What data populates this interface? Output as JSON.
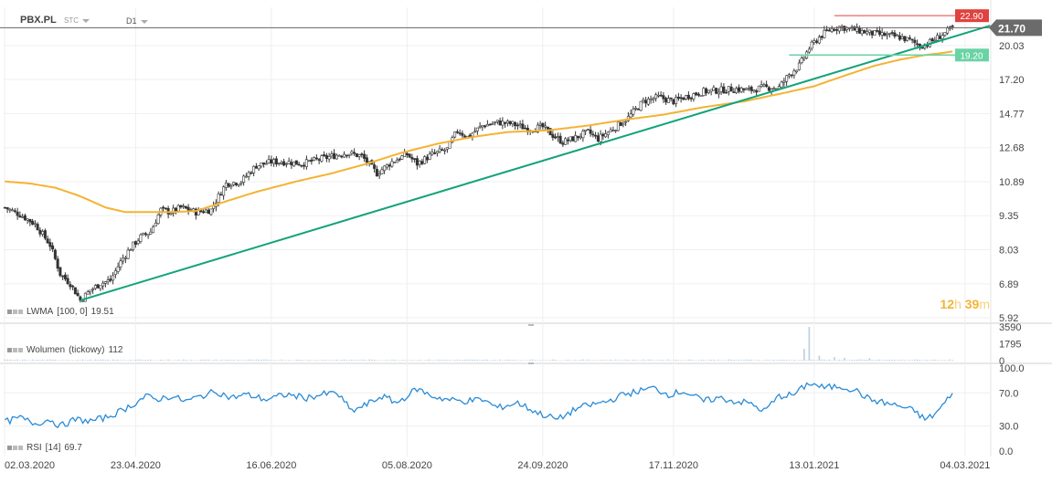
{
  "header": {
    "symbol": "PBX.PL",
    "symbol_sub": "STC",
    "timeframe": "D1"
  },
  "indicators": {
    "lwma_name": "LWMA",
    "lwma_params": "[100, 0]",
    "lwma_value": "19.51",
    "volume_name": "Wolumen",
    "volume_params": "(tickowy)",
    "volume_value": "112",
    "rsi_name": "RSI",
    "rsi_params": "[14]",
    "rsi_value": "69.7"
  },
  "timer": {
    "hours": "12",
    "h_unit": "h",
    "minutes": "39",
    "m_unit": "m"
  },
  "colors": {
    "candle": "#333333",
    "lwma": "#f4b333",
    "trendline": "#12a37a",
    "support": "#69d3a4",
    "resistance": "#e0423f",
    "current_price": "#666666",
    "rsi": "#2a8bd6",
    "volume": "#b9cde0"
  },
  "chart_data": [
    {
      "type": "candlestick",
      "title": "PBX.PL",
      "x_ticks": [
        "02.03.2020",
        "23.04.2020",
        "16.06.2020",
        "05.08.2020",
        "24.09.2020",
        "17.11.2020",
        "13.01.2021",
        "04.03.2021"
      ],
      "y_ticks": [
        "5.92",
        "6.89",
        "8.03",
        "9.35",
        "10.89",
        "12.68",
        "14.77",
        "17.20",
        "20.03"
      ],
      "ylim": [
        5.92,
        23.2
      ],
      "scale": "log",
      "grid": true,
      "close_path": [
        [
          0,
          9.7
        ],
        [
          6,
          9.4
        ],
        [
          12,
          9.0
        ],
        [
          18,
          8.2
        ],
        [
          22,
          7.2
        ],
        [
          26,
          6.9
        ],
        [
          30,
          6.4
        ],
        [
          34,
          6.7
        ],
        [
          38,
          6.9
        ],
        [
          42,
          7.0
        ],
        [
          46,
          7.6
        ],
        [
          50,
          8.1
        ],
        [
          54,
          8.5
        ],
        [
          58,
          8.7
        ],
        [
          62,
          9.6
        ],
        [
          66,
          9.5
        ],
        [
          70,
          9.7
        ],
        [
          76,
          9.5
        ],
        [
          82,
          9.6
        ],
        [
          88,
          10.8
        ],
        [
          94,
          10.9
        ],
        [
          100,
          11.7
        ],
        [
          106,
          11.9
        ],
        [
          112,
          11.9
        ],
        [
          118,
          11.8
        ],
        [
          124,
          12.0
        ],
        [
          130,
          12.2
        ],
        [
          136,
          12.4
        ],
        [
          142,
          12.2
        ],
        [
          148,
          11.3
        ],
        [
          154,
          11.9
        ],
        [
          160,
          12.3
        ],
        [
          164,
          11.8
        ],
        [
          170,
          12.3
        ],
        [
          176,
          12.6
        ],
        [
          180,
          13.7
        ],
        [
          184,
          13.3
        ],
        [
          190,
          14.0
        ],
        [
          196,
          14.2
        ],
        [
          202,
          14.1
        ],
        [
          208,
          13.8
        ],
        [
          214,
          13.9
        ],
        [
          218,
          13.4
        ],
        [
          222,
          13.0
        ],
        [
          226,
          13.2
        ],
        [
          232,
          13.6
        ],
        [
          236,
          13.2
        ],
        [
          242,
          13.8
        ],
        [
          248,
          14.5
        ],
        [
          254,
          15.6
        ],
        [
          260,
          15.9
        ],
        [
          266,
          15.6
        ],
        [
          272,
          16.0
        ],
        [
          278,
          16.3
        ],
        [
          284,
          16.4
        ],
        [
          290,
          16.5
        ],
        [
          296,
          16.4
        ],
        [
          302,
          16.6
        ],
        [
          308,
          16.6
        ],
        [
          312,
          17.6
        ],
        [
          316,
          18.3
        ],
        [
          320,
          19.8
        ],
        [
          324,
          20.8
        ],
        [
          328,
          21.5
        ],
        [
          332,
          21.8
        ],
        [
          336,
          21.6
        ],
        [
          340,
          21.4
        ],
        [
          344,
          21.2
        ],
        [
          350,
          21.0
        ],
        [
          356,
          20.8
        ],
        [
          360,
          20.5
        ],
        [
          364,
          20.0
        ],
        [
          367,
          20.2
        ],
        [
          370,
          20.6
        ],
        [
          374,
          21.2
        ],
        [
          377,
          21.7
        ]
      ],
      "lwma_path": [
        [
          0,
          10.9
        ],
        [
          10,
          10.8
        ],
        [
          20,
          10.6
        ],
        [
          30,
          10.2
        ],
        [
          40,
          9.7
        ],
        [
          48,
          9.5
        ],
        [
          56,
          9.5
        ],
        [
          66,
          9.5
        ],
        [
          76,
          9.55
        ],
        [
          86,
          9.9
        ],
        [
          100,
          10.4
        ],
        [
          116,
          10.9
        ],
        [
          130,
          11.3
        ],
        [
          144,
          11.8
        ],
        [
          158,
          12.4
        ],
        [
          172,
          12.9
        ],
        [
          186,
          13.3
        ],
        [
          200,
          13.6
        ],
        [
          216,
          13.7
        ],
        [
          232,
          14.0
        ],
        [
          248,
          14.4
        ],
        [
          262,
          14.7
        ],
        [
          278,
          15.2
        ],
        [
          294,
          15.6
        ],
        [
          310,
          16.2
        ],
        [
          322,
          16.7
        ],
        [
          334,
          17.5
        ],
        [
          346,
          18.3
        ],
        [
          356,
          18.8
        ],
        [
          366,
          19.2
        ],
        [
          372,
          19.35
        ],
        [
          377,
          19.51
        ]
      ],
      "trendline": {
        "start": [
          30,
          6.4
        ],
        "end": [
          392,
          21.9
        ]
      },
      "support": {
        "value": 19.2,
        "from": 312,
        "label": "19.20"
      },
      "resistance": {
        "value": 22.9,
        "from": 330,
        "label": "22.90"
      },
      "current_price": {
        "value": 21.7,
        "label": "21.70"
      },
      "indicator": {
        "name": "LWMA",
        "params": "[100, 0]",
        "value": 19.51
      }
    },
    {
      "type": "bar",
      "title": "Wolumen (tickowy)",
      "y_ticks": [
        "3590",
        "1795",
        "0"
      ],
      "ylim": [
        0,
        3590
      ],
      "spikes": [
        [
          320,
          3590
        ],
        [
          318,
          1250
        ],
        [
          324,
          520
        ],
        [
          330,
          380
        ],
        [
          334,
          300
        ],
        [
          344,
          260
        ]
      ],
      "baseline": 80,
      "current": 112
    },
    {
      "type": "line",
      "title": "RSI [14]",
      "y_ticks": [
        "100.0",
        "70.0",
        "30.0",
        "0.0"
      ],
      "ylim": [
        0,
        100
      ],
      "values_path": [
        [
          0,
          35
        ],
        [
          6,
          40
        ],
        [
          12,
          33
        ],
        [
          18,
          38
        ],
        [
          22,
          30
        ],
        [
          28,
          38
        ],
        [
          34,
          36
        ],
        [
          40,
          40
        ],
        [
          46,
          48
        ],
        [
          52,
          58
        ],
        [
          56,
          66
        ],
        [
          60,
          62
        ],
        [
          66,
          66
        ],
        [
          72,
          60
        ],
        [
          78,
          66
        ],
        [
          84,
          72
        ],
        [
          90,
          64
        ],
        [
          96,
          68
        ],
        [
          104,
          62
        ],
        [
          112,
          68
        ],
        [
          120,
          64
        ],
        [
          126,
          68
        ],
        [
          132,
          70
        ],
        [
          138,
          48
        ],
        [
          144,
          56
        ],
        [
          150,
          66
        ],
        [
          156,
          58
        ],
        [
          164,
          75
        ],
        [
          170,
          66
        ],
        [
          176,
          62
        ],
        [
          182,
          60
        ],
        [
          190,
          62
        ],
        [
          196,
          52
        ],
        [
          204,
          58
        ],
        [
          212,
          46
        ],
        [
          220,
          38
        ],
        [
          228,
          52
        ],
        [
          234,
          56
        ],
        [
          240,
          60
        ],
        [
          246,
          68
        ],
        [
          252,
          72
        ],
        [
          258,
          76
        ],
        [
          264,
          68
        ],
        [
          270,
          72
        ],
        [
          278,
          60
        ],
        [
          284,
          64
        ],
        [
          290,
          60
        ],
        [
          296,
          58
        ],
        [
          302,
          48
        ],
        [
          308,
          66
        ],
        [
          314,
          68
        ],
        [
          320,
          82
        ],
        [
          326,
          76
        ],
        [
          332,
          78
        ],
        [
          338,
          74
        ],
        [
          344,
          62
        ],
        [
          350,
          58
        ],
        [
          356,
          54
        ],
        [
          362,
          48
        ],
        [
          366,
          38
        ],
        [
          370,
          44
        ],
        [
          374,
          58
        ],
        [
          377,
          69.7
        ]
      ],
      "current": 69.7
    }
  ]
}
